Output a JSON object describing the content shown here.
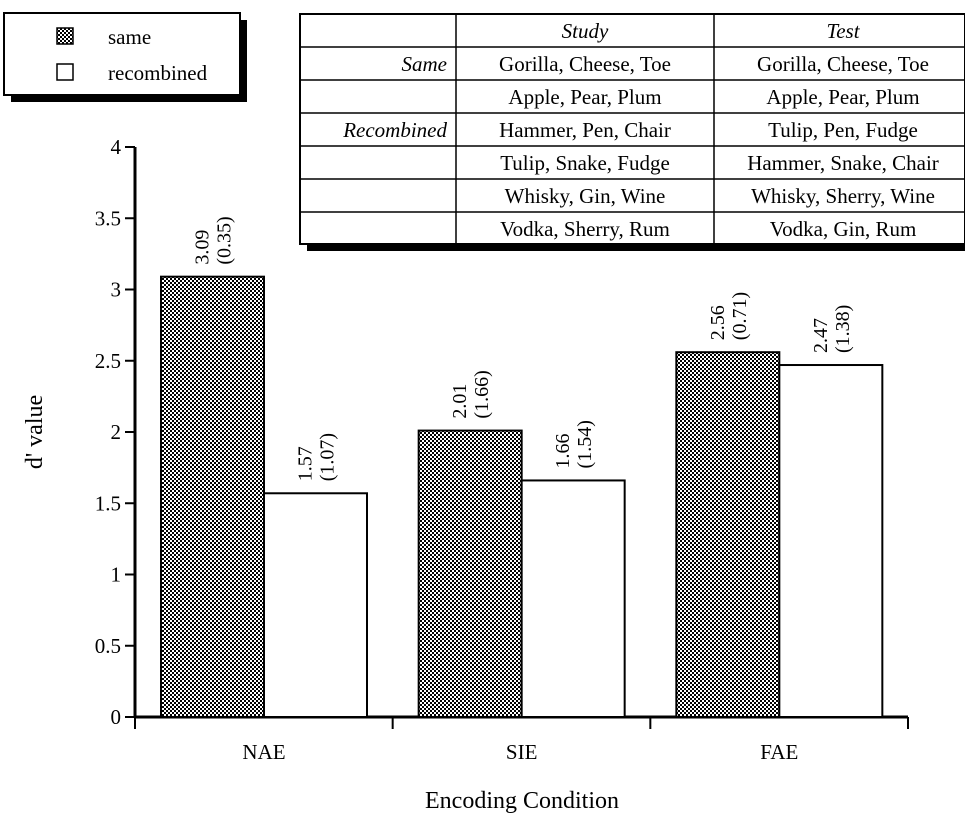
{
  "chart_data": {
    "type": "bar",
    "categories": [
      "NAE",
      "SIE",
      "FAE"
    ],
    "series": [
      {
        "name": "same",
        "values": [
          3.09,
          2.01,
          2.56
        ],
        "sd": [
          "(0.35)",
          "(1.66)",
          "(0.71)"
        ],
        "value_labels": [
          "3.09",
          "2.01",
          "2.56"
        ],
        "pattern": "crosshatch"
      },
      {
        "name": "recombined",
        "values": [
          1.57,
          1.66,
          2.47
        ],
        "sd": [
          "(1.07)",
          "(1.54)",
          "(1.38)"
        ],
        "value_labels": [
          "1.57",
          "1.66",
          "2.47"
        ],
        "pattern": "none"
      }
    ],
    "xlabel": "Encoding Condition",
    "ylabel": "d' value",
    "ylim": [
      0,
      4
    ],
    "yticks": [
      0,
      0.5,
      1,
      1.5,
      2,
      2.5,
      3,
      3.5,
      4
    ],
    "ytick_labels": [
      "0",
      "0.5",
      "1",
      "1.5",
      "2",
      "2.5",
      "3",
      "3.5",
      "4"
    ],
    "grid": false,
    "legend_position": "top-left",
    "legend": [
      "same",
      "recombined"
    ],
    "colors": {
      "bar_stroke": "#000000",
      "hatch": "#000000",
      "background": "#ffffff"
    }
  },
  "inset_table": {
    "headers": [
      "",
      "Study",
      "Test"
    ],
    "rows": [
      [
        "Same",
        "Gorilla, Cheese, Toe",
        "Gorilla, Cheese, Toe"
      ],
      [
        "",
        "Apple, Pear, Plum",
        "Apple, Pear, Plum"
      ],
      [
        "Recombined",
        "Hammer, Pen, Chair",
        "Tulip, Pen, Fudge"
      ],
      [
        "",
        "Tulip, Snake, Fudge",
        "Hammer, Snake, Chair"
      ],
      [
        "",
        "Whisky, Gin, Wine",
        "Whisky, Sherry, Wine"
      ],
      [
        "",
        "Vodka, Sherry, Rum",
        "Vodka, Gin, Rum"
      ]
    ]
  }
}
